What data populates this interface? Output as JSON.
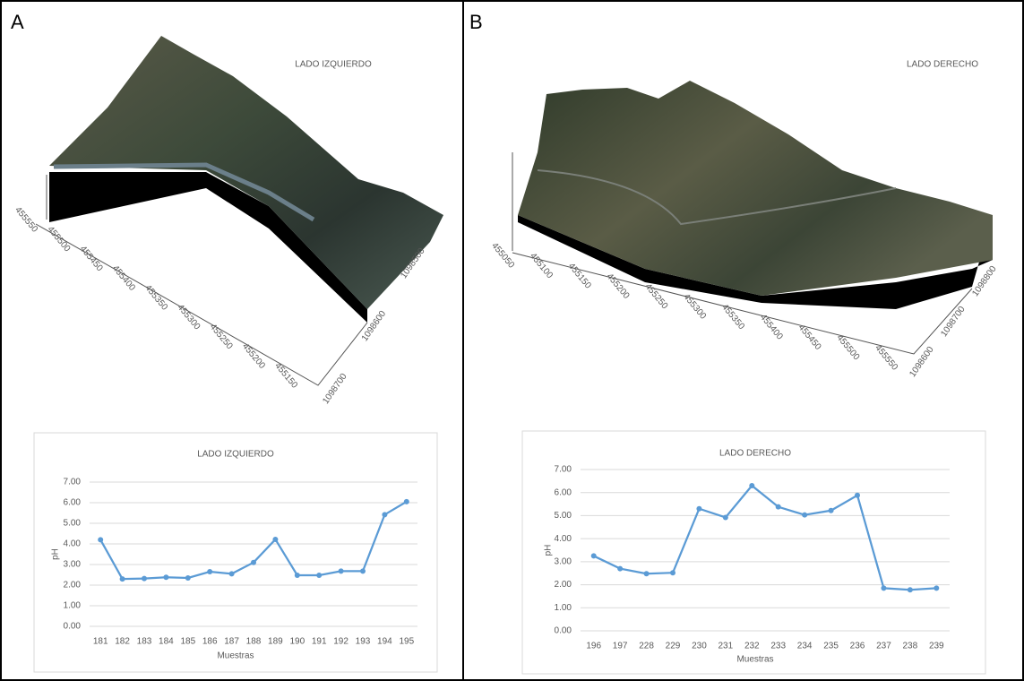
{
  "panels": [
    {
      "label": "A",
      "terrain_title": "LADO IZQUIERDO",
      "x_axis_labels": [
        "455550",
        "455500",
        "455450",
        "455400",
        "455350",
        "455300",
        "455250",
        "455200",
        "455150"
      ],
      "y_axis_labels": [
        "1098500",
        "1098600",
        "1098700"
      ]
    },
    {
      "label": "B",
      "terrain_title": "LADO DERECHO",
      "x_axis_labels": [
        "455050",
        "455100",
        "455150",
        "455200",
        "455250",
        "455300",
        "455350",
        "455400",
        "455450",
        "455500",
        "455550"
      ],
      "y_axis_labels": [
        "1098800",
        "1098700",
        "1098600"
      ]
    }
  ],
  "chart_data": [
    {
      "type": "line",
      "title": "LADO IZQUIERDO",
      "x_label": "Muestras",
      "y_label": "pH",
      "color": "#5b9bd5",
      "grid": true,
      "categories": [
        "181",
        "182",
        "183",
        "184",
        "185",
        "186",
        "187",
        "188",
        "189",
        "190",
        "191",
        "192",
        "193",
        "194",
        "195"
      ],
      "values": [
        4.2,
        2.3,
        2.32,
        2.38,
        2.35,
        2.65,
        2.55,
        3.1,
        4.22,
        2.48,
        2.48,
        2.68,
        2.68,
        5.42,
        6.05
      ],
      "ylim": [
        0,
        7
      ],
      "yticks": [
        {
          "value": 0,
          "label": "0.00"
        },
        {
          "value": 1,
          "label": "1.00"
        },
        {
          "value": 2,
          "label": "2.00"
        },
        {
          "value": 3,
          "label": "3.00"
        },
        {
          "value": 4,
          "label": "4.00"
        },
        {
          "value": 5,
          "label": "5.00"
        },
        {
          "value": 6,
          "label": "6.00"
        },
        {
          "value": 7,
          "label": "7.00"
        }
      ]
    },
    {
      "type": "line",
      "title": "LADO DERECHO",
      "x_label": "Muestras",
      "y_label": "pH",
      "color": "#5b9bd5",
      "grid": true,
      "categories": [
        "196",
        "197",
        "228",
        "229",
        "230",
        "231",
        "232",
        "233",
        "234",
        "235",
        "236",
        "237",
        "238",
        "239"
      ],
      "values": [
        3.25,
        2.7,
        2.48,
        2.52,
        5.3,
        4.92,
        6.3,
        5.38,
        5.03,
        5.22,
        5.88,
        1.85,
        1.78,
        1.85
      ],
      "ylim": [
        0,
        7
      ],
      "yticks": [
        {
          "value": 0,
          "label": "0.00"
        },
        {
          "value": 1,
          "label": "1.00"
        },
        {
          "value": 2,
          "label": "2.00"
        },
        {
          "value": 3,
          "label": "3.00"
        },
        {
          "value": 4,
          "label": "4.00"
        },
        {
          "value": 5,
          "label": "5.00"
        },
        {
          "value": 6,
          "label": "6.00"
        },
        {
          "value": 7,
          "label": "7.00"
        }
      ]
    }
  ]
}
